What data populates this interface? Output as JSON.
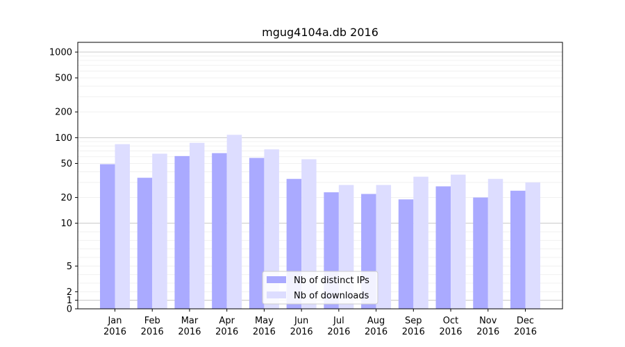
{
  "chart_data": {
    "type": "bar",
    "title": "mgug4104a.db 2016",
    "xlabel": "",
    "ylabel": "",
    "yscale": "symlog",
    "ylim": [
      0,
      1300
    ],
    "yticks": [
      {
        "value": 0,
        "label": "0"
      },
      {
        "value": 1,
        "label": "1"
      },
      {
        "value": 2,
        "label": "2"
      },
      {
        "value": 5,
        "label": "5"
      },
      {
        "value": 10,
        "label": "10"
      },
      {
        "value": 20,
        "label": "20"
      },
      {
        "value": 50,
        "label": "50"
      },
      {
        "value": 100,
        "label": "100"
      },
      {
        "value": 200,
        "label": "200"
      },
      {
        "value": 500,
        "label": "500"
      },
      {
        "value": 1000,
        "label": "1000"
      }
    ],
    "categories": [
      {
        "month": "Jan",
        "year": "2016"
      },
      {
        "month": "Feb",
        "year": "2016"
      },
      {
        "month": "Mar",
        "year": "2016"
      },
      {
        "month": "Apr",
        "year": "2016"
      },
      {
        "month": "May",
        "year": "2016"
      },
      {
        "month": "Jun",
        "year": "2016"
      },
      {
        "month": "Jul",
        "year": "2016"
      },
      {
        "month": "Aug",
        "year": "2016"
      },
      {
        "month": "Sep",
        "year": "2016"
      },
      {
        "month": "Oct",
        "year": "2016"
      },
      {
        "month": "Nov",
        "year": "2016"
      },
      {
        "month": "Dec",
        "year": "2016"
      }
    ],
    "series": [
      {
        "name": "Nb of distinct IPs",
        "color": "#aaaaff",
        "values": [
          49,
          34,
          61,
          66,
          58,
          33,
          23,
          22,
          19,
          27,
          20,
          24
        ]
      },
      {
        "name": "Nb of downloads",
        "color": "#ddddff",
        "values": [
          84,
          65,
          87,
          108,
          73,
          56,
          28,
          28,
          35,
          37,
          33,
          30
        ]
      }
    ],
    "legend": {
      "position": "bottom-center"
    },
    "grid": {
      "major": true,
      "minor": true
    }
  }
}
